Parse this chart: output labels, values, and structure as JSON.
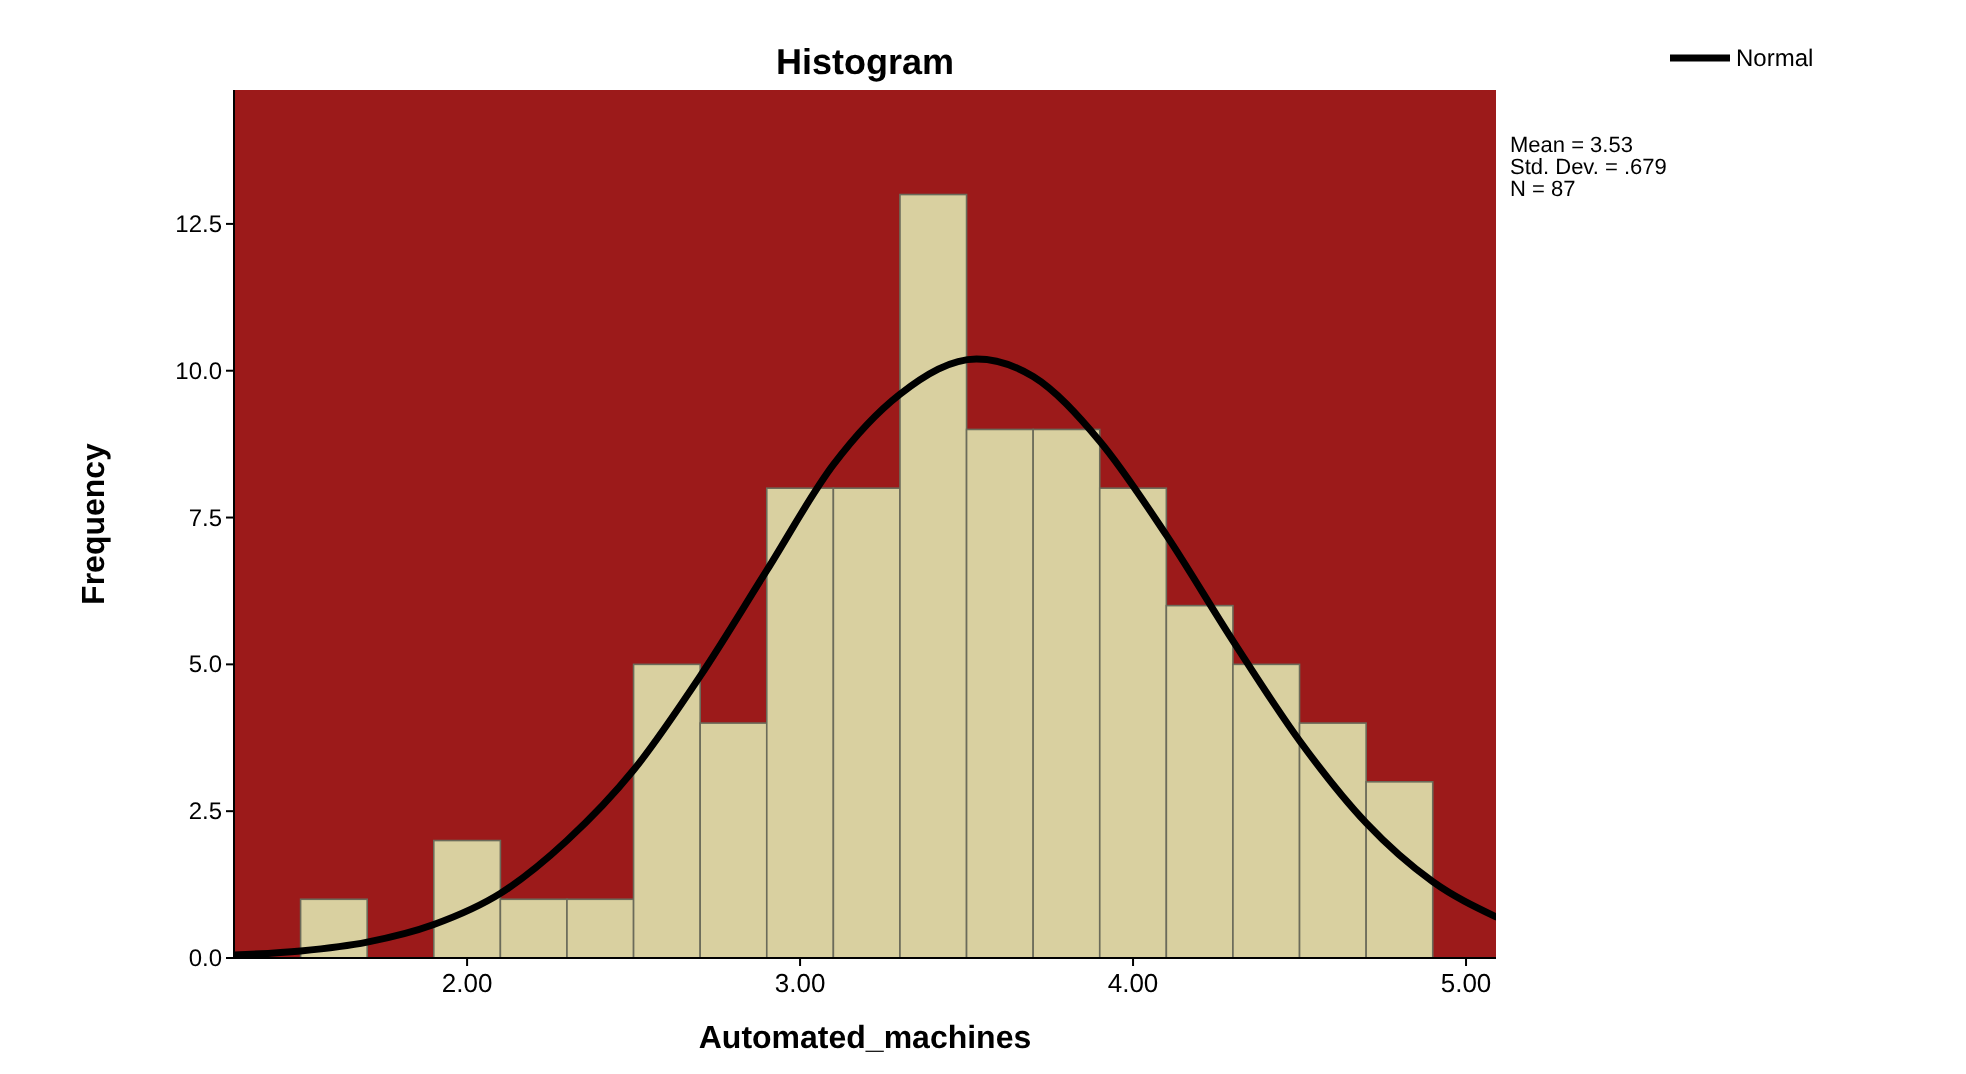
{
  "chart_data": {
    "type": "histogram",
    "title": "Histogram",
    "xlabel": "Automated_machines",
    "ylabel": "Frequency",
    "bins": [
      1.5,
      1.7,
      1.9,
      2.1,
      2.3,
      2.5,
      2.7,
      2.9,
      3.1,
      3.3,
      3.5,
      3.7,
      3.9,
      4.1,
      4.3,
      4.5,
      4.7,
      4.9
    ],
    "values": [
      1,
      0,
      2,
      1,
      1,
      5,
      4,
      8,
      8,
      13,
      9,
      9,
      8,
      6,
      5,
      4,
      3
    ],
    "color": "#d9d0a0",
    "series": [
      {
        "type": "line",
        "name": "Normal",
        "color": "#000000",
        "x": [
          1.3,
          1.5,
          1.7,
          1.9,
          2.1,
          2.3,
          2.5,
          2.7,
          2.9,
          3.1,
          3.3,
          3.53,
          3.7,
          3.9,
          4.1,
          4.3,
          4.5,
          4.7,
          4.9,
          5.09
        ],
        "values": [
          0.05,
          0.12,
          0.27,
          0.57,
          1.1,
          2.0,
          3.2,
          4.8,
          6.6,
          8.4,
          9.6,
          10.2,
          9.9,
          8.8,
          7.2,
          5.4,
          3.7,
          2.3,
          1.3,
          0.7
        ]
      }
    ],
    "annotations": [
      "Mean = 3.53",
      "Std. Dev. = .679",
      "N = 87"
    ],
    "xlim": [
      1.3,
      5.09
    ],
    "xticks": [
      {
        "value": 2,
        "label": "2.00"
      },
      {
        "value": 3,
        "label": "3.00"
      },
      {
        "value": 4,
        "label": "4.00"
      },
      {
        "value": 5,
        "label": "5.00"
      }
    ],
    "ylim": [
      0,
      14.78
    ],
    "yticks": [
      {
        "value": 0,
        "label": "0.0"
      },
      {
        "value": 2.5,
        "label": "2.5"
      },
      {
        "value": 5,
        "label": "5.0"
      },
      {
        "value": 7.5,
        "label": "7.5"
      },
      {
        "value": 10,
        "label": "10.0"
      },
      {
        "value": 12.5,
        "label": "12.5"
      }
    ],
    "grid": false,
    "legend": "top right"
  }
}
